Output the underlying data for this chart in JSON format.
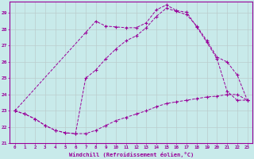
{
  "title": "",
  "xlabel": "Windchill (Refroidissement éolien,°C)",
  "bg_color": "#c8eaea",
  "line_color": "#990099",
  "grid_color": "#aaaaaa",
  "xlim_min": -0.5,
  "xlim_max": 23.5,
  "ylim_min": 21,
  "ylim_max": 29.7,
  "yticks": [
    21,
    22,
    23,
    24,
    25,
    26,
    27,
    28,
    29
  ],
  "xticks": [
    0,
    1,
    2,
    3,
    4,
    5,
    6,
    7,
    8,
    9,
    10,
    11,
    12,
    13,
    14,
    15,
    16,
    17,
    18,
    19,
    20,
    21,
    22,
    23
  ],
  "line1_x": [
    0,
    1,
    2,
    3,
    4,
    5,
    6,
    7,
    8,
    9,
    10,
    11,
    12,
    13,
    14,
    15,
    16,
    17,
    18,
    19,
    20,
    21,
    22,
    23
  ],
  "line1_y": [
    23.0,
    22.8,
    22.5,
    22.1,
    21.8,
    21.65,
    21.6,
    21.6,
    21.8,
    22.1,
    22.4,
    22.6,
    22.8,
    23.0,
    23.25,
    23.45,
    23.55,
    23.65,
    23.75,
    23.85,
    23.9,
    24.0,
    24.0,
    23.65
  ],
  "line2_x": [
    0,
    1,
    2,
    3,
    4,
    5,
    6,
    7,
    8,
    9,
    10,
    11,
    12,
    13,
    14,
    15,
    16,
    17,
    18,
    19,
    20,
    21,
    22,
    23
  ],
  "line2_y": [
    23.0,
    22.8,
    22.5,
    22.1,
    21.8,
    21.65,
    21.6,
    25.0,
    25.5,
    26.2,
    26.8,
    27.3,
    27.6,
    28.1,
    28.8,
    29.3,
    29.1,
    28.9,
    28.2,
    27.3,
    26.3,
    26.0,
    25.2,
    23.65
  ],
  "line3_x": [
    0,
    7,
    8,
    9,
    10,
    11,
    12,
    13,
    14,
    15,
    16,
    17,
    18,
    19,
    20,
    21,
    22,
    23
  ],
  "line3_y": [
    23.0,
    27.8,
    28.5,
    28.2,
    28.15,
    28.1,
    28.1,
    28.4,
    29.2,
    29.5,
    29.15,
    29.05,
    28.15,
    27.2,
    26.2,
    24.2,
    23.65,
    23.65
  ]
}
